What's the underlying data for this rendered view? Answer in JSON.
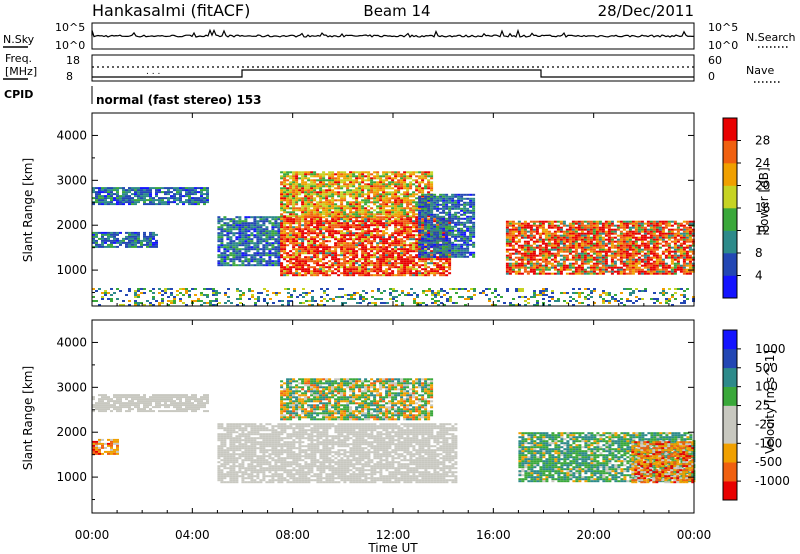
{
  "header": {
    "site": "Hankasalmi (fitACF)",
    "beam": "Beam 14",
    "date": "28/Dec/2011"
  },
  "sky_panel": {
    "left_label": "N.Sky",
    "right_label": "N.Search",
    "left_ticks": [
      "10^5",
      "10^0"
    ],
    "right_ticks": [
      "10^5",
      "10^0"
    ]
  },
  "freq_panel": {
    "left_label_1": "Freq.",
    "left_label_2": "[MHz]",
    "left_ticks": [
      "18",
      "8"
    ],
    "right_label": "Nave",
    "right_ticks": [
      "60",
      "0"
    ]
  },
  "cpid": {
    "label": "CPID",
    "text": "normal (fast stereo) 153"
  },
  "x_axis": {
    "title": "Time UT",
    "ticks": [
      "00:00",
      "04:00",
      "08:00",
      "12:00",
      "16:00",
      "20:00",
      "00:00"
    ]
  },
  "colors": {
    "power": [
      "#1414ff",
      "#2347b4",
      "#2d8a8a",
      "#3aa83a",
      "#c6d323",
      "#f0a000",
      "#f06010",
      "#e80000"
    ],
    "velocity": [
      "#e80000",
      "#f06010",
      "#f0a000",
      "#c8c8c0",
      "#c8c8c0",
      "#3aa83a",
      "#2d8a8a",
      "#2347b4",
      "#1414ff"
    ]
  },
  "chart_data": [
    {
      "type": "heatmap",
      "panel": "power",
      "ylabel": "Slant Range [km]",
      "ylim": [
        200,
        4500
      ],
      "yticks": [
        "4000",
        "3000",
        "2000",
        "1000"
      ],
      "xlim_hours": [
        0,
        24
      ],
      "colorbar": {
        "label": "Power [dB]",
        "ticks": [
          "28",
          "24",
          "20",
          "16",
          "12",
          "8",
          "4"
        ]
      },
      "regions": [
        {
          "t": [
            0.0,
            4.6
          ],
          "r": [
            2450,
            2850
          ],
          "level": "low"
        },
        {
          "t": [
            0.0,
            2.6
          ],
          "r": [
            1500,
            1850
          ],
          "level": "low"
        },
        {
          "t": [
            5.0,
            7.5
          ],
          "r": [
            1100,
            2200
          ],
          "level": "low"
        },
        {
          "t": [
            7.5,
            14.2
          ],
          "r": [
            900,
            2200
          ],
          "level": "high"
        },
        {
          "t": [
            7.5,
            13.5
          ],
          "r": [
            2200,
            3200
          ],
          "level": "mid"
        },
        {
          "t": [
            13.0,
            15.2
          ],
          "r": [
            1300,
            2700
          ],
          "level": "low"
        },
        {
          "t": [
            16.5,
            24.0
          ],
          "r": [
            900,
            2100
          ],
          "level": "mid-high"
        },
        {
          "t": [
            0.0,
            24.0
          ],
          "r": [
            200,
            600
          ],
          "level": "noise"
        }
      ]
    },
    {
      "type": "heatmap",
      "panel": "velocity",
      "ylabel": "Slant Range [km]",
      "ylim": [
        200,
        4500
      ],
      "yticks": [
        "4000",
        "3000",
        "2000",
        "1000"
      ],
      "xlim_hours": [
        0,
        24
      ],
      "colorbar": {
        "label": "Velocity [m s^-1]",
        "ticks": [
          "1000",
          "500",
          "100",
          "25",
          "-25",
          "-100",
          "-500",
          "-1000"
        ]
      },
      "regions": [
        {
          "t": [
            0.0,
            4.6
          ],
          "r": [
            2450,
            2850
          ],
          "level": "ground"
        },
        {
          "t": [
            0.0,
            1.0
          ],
          "r": [
            1500,
            1850
          ],
          "level": "negative"
        },
        {
          "t": [
            5.0,
            14.5
          ],
          "r": [
            900,
            2200
          ],
          "level": "ground"
        },
        {
          "t": [
            7.5,
            13.5
          ],
          "r": [
            2300,
            3200
          ],
          "level": "mixed"
        },
        {
          "t": [
            17.0,
            24.0
          ],
          "r": [
            900,
            2000
          ],
          "level": "positive"
        },
        {
          "t": [
            21.5,
            24.0
          ],
          "r": [
            900,
            1800
          ],
          "level": "negative"
        }
      ]
    }
  ]
}
